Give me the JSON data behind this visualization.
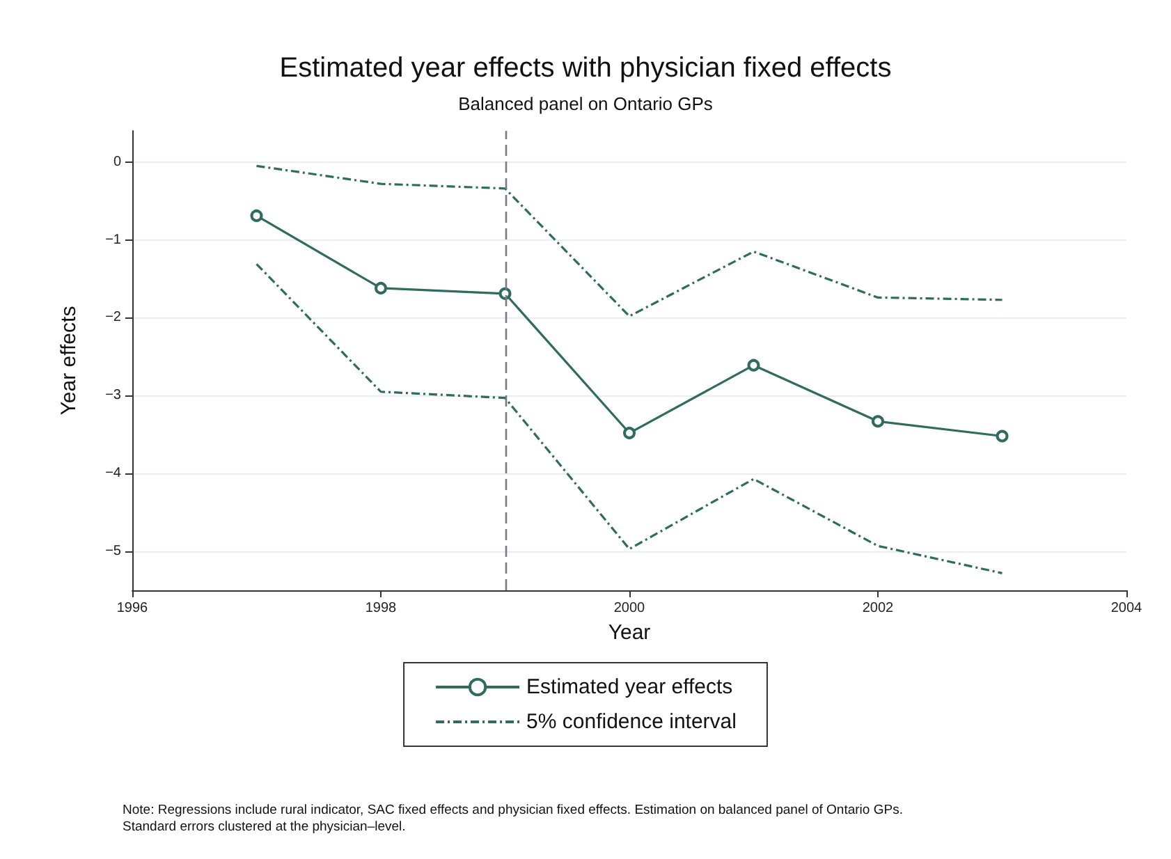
{
  "chart_data": {
    "type": "line",
    "title": "Estimated year effects with physician fixed effects",
    "subtitle": "Balanced panel on Ontario GPs",
    "xlabel": "Year",
    "ylabel": "Year effects",
    "x": [
      1997,
      1998,
      1999,
      2000,
      2001,
      2002,
      2003
    ],
    "series": [
      {
        "name": "Estimated year effects",
        "color": "#2f6b5f",
        "marker": "circle",
        "line_style": "solid",
        "values": [
          -0.69,
          -1.62,
          -1.69,
          -3.48,
          -2.61,
          -3.33,
          -3.52
        ]
      },
      {
        "name": "5% confidence interval",
        "color": "#2f6b5f",
        "marker": "none",
        "line_style": "dashed",
        "values": [
          -0.05,
          -0.28,
          -0.34,
          -1.98,
          -1.15,
          -1.74,
          -1.77
        ]
      },
      {
        "color": "#2f6b5f",
        "marker": "none",
        "line_style": "dashed",
        "values": [
          -1.31,
          -2.95,
          -3.03,
          -4.97,
          -4.07,
          -4.93,
          -5.28
        ]
      }
    ],
    "xlim": [
      1996,
      2004
    ],
    "xticks": [
      1996,
      1998,
      2000,
      2002,
      2004
    ],
    "ylim": [
      -5.5,
      0.4
    ],
    "yticks": [
      0,
      -1,
      -2,
      -3,
      -4,
      -5
    ],
    "grid": "y",
    "legend": "bottom",
    "ref_lines": [
      {
        "axis": "x",
        "value": 1999,
        "color": "#7a7a8c",
        "line_style": "dashed"
      }
    ],
    "annotations": [
      "Note: Regressions include rural indicator, SAC fixed effects and physician fixed effects. Estimation on balanced panel of Ontario GPs.\nStandard errors clustered at the physician–level."
    ]
  }
}
